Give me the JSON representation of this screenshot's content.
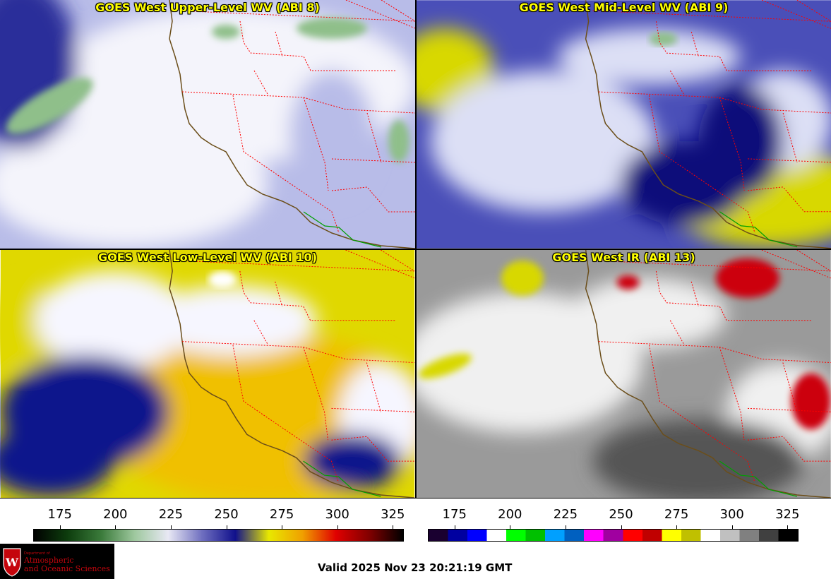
{
  "panels": [
    {
      "title": "GOES West Upper-Level WV (ABI 8)",
      "style": "upper",
      "colors": {
        "base": "#b8bce8",
        "light": "#f4f4fb",
        "dark": "#2b2f9a",
        "moist": "#8fbf8a"
      }
    },
    {
      "title": "GOES West Mid-Level WV (ABI 9)",
      "style": "mid",
      "colors": {
        "base": "#4a4fb8",
        "light": "#dcdff5",
        "dark": "#0a0f7a",
        "dry": "#d8d800"
      }
    },
    {
      "title": "GOES West Low-Level WV (ABI 10)",
      "style": "low",
      "colors": {
        "base": "#e0d800",
        "light": "#f6f6ff",
        "dark": "#10158c",
        "dry": "#f0c000"
      }
    },
    {
      "title": "GOES West IR (ABI 13)",
      "style": "ir",
      "colors": {
        "base": "#9a9a9a",
        "light": "#f0f0f0",
        "dark": "#555555",
        "cold": "#cc0010"
      }
    }
  ],
  "colorbars": [
    {
      "ticks": [
        "175",
        "200",
        "225",
        "250",
        "275",
        "300",
        "325"
      ],
      "stops": [
        "#000000",
        "#0d3d0d",
        "#3a7a3a",
        "#9ec89e",
        "#e8e8f4",
        "#7070c0",
        "#10108c",
        "#e8e800",
        "#f0a000",
        "#e00000",
        "#800000",
        "#000000"
      ]
    },
    {
      "ticks": [
        "175",
        "200",
        "225",
        "250",
        "275",
        "300",
        "325"
      ],
      "segments": [
        "#1a0030",
        "#0000a0",
        "#0000ff",
        "#ffffff",
        "#00ff00",
        "#00c000",
        "#00a0ff",
        "#0060c0",
        "#ff00ff",
        "#a000a0",
        "#ff0000",
        "#c00000",
        "#ffff00",
        "#c0c000",
        "#ffffff",
        "#c0c0c0",
        "#808080",
        "#404040",
        "#000000"
      ]
    }
  ],
  "footer": {
    "valid_time": "Valid 2025 Nov 23 20:21:19 GMT",
    "logo_line1": "Department of",
    "logo_line2": "Atmospheric",
    "logo_line3": "and Oceanic Sciences"
  },
  "map_colors": {
    "coast": "#6b4e1a",
    "state_border": "#ff0000",
    "mexico_border": "#00a000"
  }
}
